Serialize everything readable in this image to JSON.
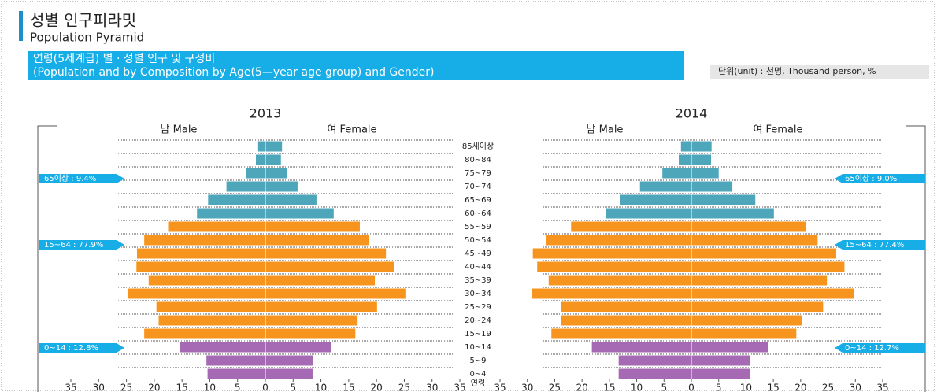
{
  "header": {
    "title": "성별 인구피라밋",
    "subtitle": "Population Pyramid",
    "banner": "연령(5세계급) 별 · 성별 인구 및 구성비",
    "banner_en": "(Population and by Composition by Age(5—year age group) and Gender)",
    "unit": "단위(unit) : 천명, Thousand person, %",
    "age_axis_label": "연령"
  },
  "chart_data": [
    {
      "type": "pyramid",
      "title": "2013",
      "categories": [
        "85세이상",
        "80~84",
        "75~79",
        "70~74",
        "65~69",
        "60~64",
        "55~59",
        "50~54",
        "45~49",
        "40~44",
        "35~39",
        "30~34",
        "25~29",
        "20~24",
        "15~19",
        "10~14",
        "5~9",
        "0~4"
      ],
      "category_colors": [
        "#4ea6bb",
        "#4ea6bb",
        "#4ea6bb",
        "#4ea6bb",
        "#4ea6bb",
        "#4ea6bb",
        "#f7941d",
        "#f7941d",
        "#f7941d",
        "#f7941d",
        "#f7941d",
        "#f7941d",
        "#f7941d",
        "#f7941d",
        "#f7941d",
        "#a56ab3",
        "#a56ab3",
        "#a56ab3"
      ],
      "series": [
        {
          "name": "남 Male",
          "side": "left",
          "values": [
            1.3,
            1.7,
            3.5,
            7.0,
            10.3,
            12.3,
            17.5,
            21.8,
            23.1,
            23.2,
            21.0,
            24.8,
            19.6,
            19.2,
            21.8,
            15.4,
            10.6,
            10.4
          ]
        },
        {
          "name": "여 Female",
          "side": "right",
          "values": [
            3.0,
            2.8,
            3.9,
            5.8,
            9.2,
            12.3,
            17.0,
            18.7,
            21.7,
            23.2,
            19.7,
            25.2,
            20.1,
            16.6,
            16.2,
            11.8,
            8.5,
            8.5
          ]
        }
      ],
      "xlim": [
        -35,
        35
      ],
      "xticks": [
        {
          "value": -35,
          "label": "35"
        },
        {
          "value": -30,
          "label": "30"
        },
        {
          "value": -25,
          "label": "25"
        },
        {
          "value": -20,
          "label": "20"
        },
        {
          "value": -15,
          "label": "15"
        },
        {
          "value": -10,
          "label": "10"
        },
        {
          "value": -5,
          "label": "5"
        },
        0,
        5,
        10,
        15,
        20,
        25,
        30,
        35
      ],
      "annotations": [
        "65이상 : 9.4%",
        "15~64 : 77.9%",
        "0~14 : 12.8%"
      ]
    },
    {
      "type": "pyramid",
      "title": "2014",
      "categories": [
        "85세이상",
        "80~84",
        "75~79",
        "70~74",
        "65~69",
        "60~64",
        "55~59",
        "50~54",
        "45~49",
        "40~44",
        "35~39",
        "30~34",
        "25~29",
        "20~24",
        "15~19",
        "10~14",
        "5~9",
        "0~4"
      ],
      "category_colors": [
        "#4ea6bb",
        "#4ea6bb",
        "#4ea6bb",
        "#4ea6bb",
        "#4ea6bb",
        "#4ea6bb",
        "#f7941d",
        "#f7941d",
        "#f7941d",
        "#f7941d",
        "#f7941d",
        "#f7941d",
        "#f7941d",
        "#f7941d",
        "#f7941d",
        "#a56ab3",
        "#a56ab3",
        "#a56ab3"
      ],
      "series": [
        {
          "name": "남 Male",
          "side": "left",
          "values": [
            1.9,
            2.3,
            5.3,
            9.4,
            13.0,
            15.7,
            22.0,
            26.5,
            29.0,
            28.2,
            26.1,
            29.1,
            23.8,
            23.9,
            25.6,
            18.2,
            13.3,
            13.3
          ]
        },
        {
          "name": "여 Female",
          "side": "right",
          "values": [
            3.7,
            3.6,
            5.0,
            7.5,
            11.7,
            15.1,
            21.0,
            23.1,
            26.5,
            28.0,
            24.8,
            29.8,
            24.1,
            20.3,
            19.2,
            14.0,
            10.7,
            10.7
          ]
        }
      ],
      "xlim": [
        -35,
        35
      ],
      "xticks": [
        {
          "value": -35,
          "label": "35"
        },
        {
          "value": -30,
          "label": "30"
        },
        {
          "value": -25,
          "label": "25"
        },
        {
          "value": -20,
          "label": "20"
        },
        {
          "value": -15,
          "label": "15"
        },
        {
          "value": -10,
          "label": "10"
        },
        {
          "value": -5,
          "label": "5"
        },
        0,
        5,
        10,
        15,
        20,
        25,
        30,
        35
      ],
      "annotations": [
        "65이상 : 9.0%",
        "15~64 : 77.4%",
        "0~14 : 12.7%"
      ]
    }
  ]
}
